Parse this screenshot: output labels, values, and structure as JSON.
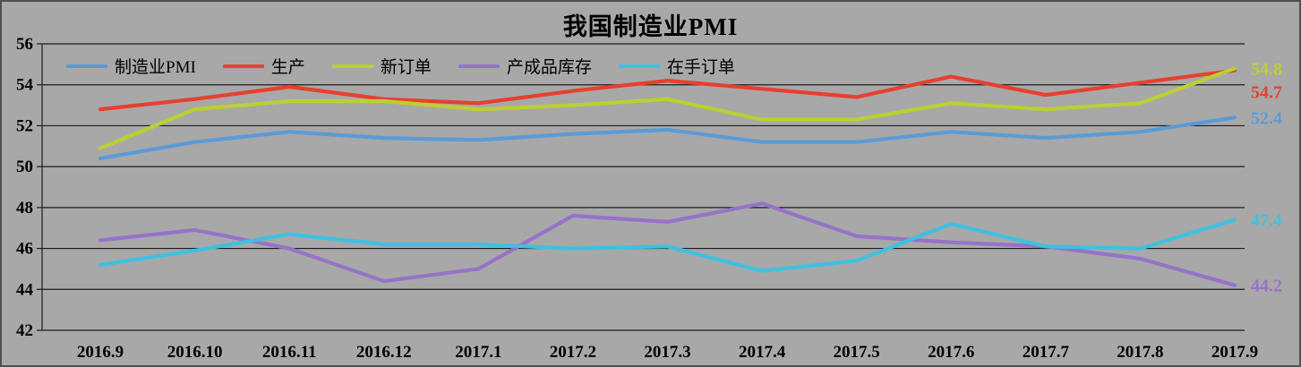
{
  "chart": {
    "title": "我国制造业PMI"
  },
  "chart_data": {
    "type": "line",
    "title": "我国制造业PMI",
    "xlabel": "",
    "ylabel": "",
    "ylim": [
      42,
      56
    ],
    "ytick_step": 2,
    "grid": true,
    "legend_position": "top-left",
    "plot_background": "#A8A8A8",
    "categories": [
      "2016.9",
      "2016.10",
      "2016.11",
      "2016.12",
      "2017.1",
      "2017.2",
      "2017.3",
      "2017.4",
      "2017.5",
      "2017.6",
      "2017.7",
      "2017.8",
      "2017.9"
    ],
    "series": [
      {
        "name": "制造业PMI",
        "color": "#5B9BD5",
        "values": [
          50.4,
          51.2,
          51.7,
          51.4,
          51.3,
          51.6,
          51.8,
          51.2,
          51.2,
          51.7,
          51.4,
          51.7,
          52.4
        ],
        "end_label": "52.4"
      },
      {
        "name": "生产",
        "color": "#E6402F",
        "values": [
          52.8,
          53.3,
          53.9,
          53.3,
          53.1,
          53.7,
          54.2,
          53.8,
          53.4,
          54.4,
          53.5,
          54.1,
          54.7
        ],
        "end_label": "54.7"
      },
      {
        "name": "新订单",
        "color": "#BCCF33",
        "values": [
          50.9,
          52.8,
          53.2,
          53.2,
          52.8,
          53.0,
          53.3,
          52.3,
          52.3,
          53.1,
          52.8,
          53.1,
          54.8
        ],
        "end_label": "54.8"
      },
      {
        "name": "产成品库存",
        "color": "#9673C9",
        "values": [
          46.4,
          46.9,
          46.0,
          44.4,
          45.0,
          47.6,
          47.3,
          48.2,
          46.6,
          46.3,
          46.1,
          45.5,
          44.2
        ],
        "end_label": "44.2"
      },
      {
        "name": "在手订单",
        "color": "#3EC1E0",
        "values": [
          45.2,
          45.9,
          46.7,
          46.2,
          46.2,
          46.0,
          46.1,
          44.9,
          45.4,
          47.2,
          46.1,
          46.0,
          47.4
        ],
        "end_label": "47.4"
      }
    ]
  }
}
